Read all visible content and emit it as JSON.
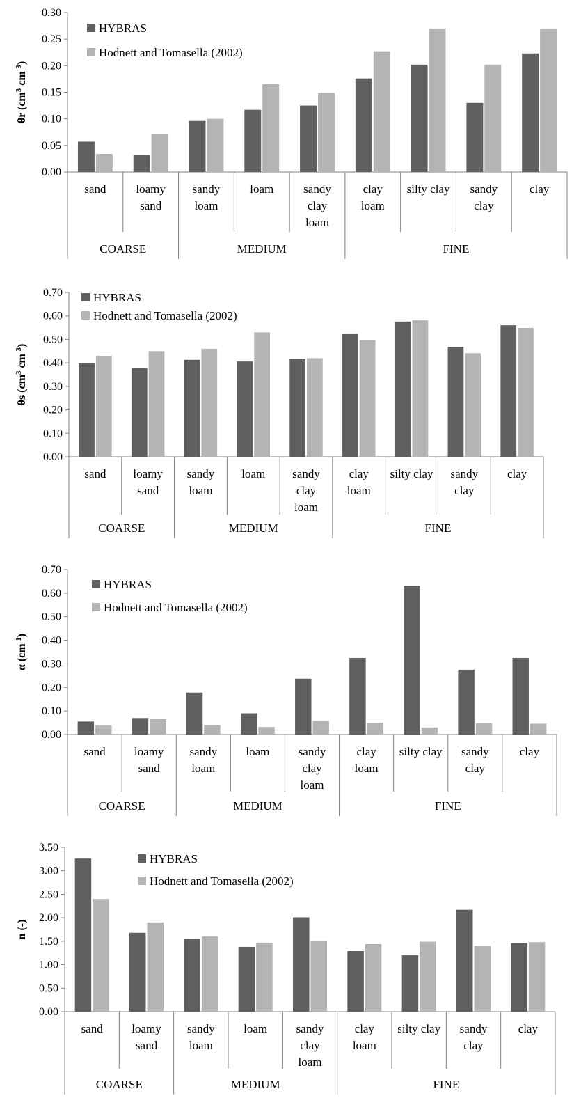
{
  "colors": {
    "hybras": "#5f5f5f",
    "hodnett": "#b4b4b4",
    "axis": "#808080"
  },
  "chart_data": [
    {
      "type": "bar",
      "ylabel_base": "θr (cm",
      "ylabel_mid": " cm",
      "ylabel_end": ")",
      "ylabel_sup1": "3",
      "ylabel_sup2": "-3",
      "ylim": [
        0,
        0.3
      ],
      "yticks": [
        "0.00",
        "0.05",
        "0.10",
        "0.15",
        "0.20",
        "0.25",
        "0.30"
      ],
      "categories": [
        [
          "sand"
        ],
        [
          "loamy",
          "sand"
        ],
        [
          "sandy",
          "loam"
        ],
        [
          "loam"
        ],
        [
          "sandy",
          "clay",
          "loam"
        ],
        [
          "clay",
          "loam"
        ],
        [
          "silty clay"
        ],
        [
          "sandy",
          "clay"
        ],
        [
          "clay"
        ]
      ],
      "groups": [
        {
          "label": "COARSE",
          "count": 2
        },
        {
          "label": "MEDIUM",
          "count": 3
        },
        {
          "label": "FINE",
          "count": 4
        }
      ],
      "series": [
        {
          "name": "HYBRAS",
          "values": [
            0.057,
            0.032,
            0.096,
            0.117,
            0.125,
            0.176,
            0.202,
            0.13,
            0.223
          ]
        },
        {
          "name": "Hodnett and Tomasella (2002)",
          "values": [
            0.034,
            0.072,
            0.1,
            0.165,
            0.149,
            0.227,
            0.27,
            0.202,
            0.27
          ]
        }
      ],
      "legend": "top-left",
      "grid": false
    },
    {
      "type": "bar",
      "ylabel_base": "θs (cm",
      "ylabel_mid": " cm",
      "ylabel_end": ")",
      "ylabel_sup1": "3",
      "ylabel_sup2": "-3",
      "ylim": [
        0,
        0.7
      ],
      "yticks": [
        "0.00",
        "0.10",
        "0.20",
        "0.30",
        "0.40",
        "0.50",
        "0.60",
        "0.70"
      ],
      "categories": [
        [
          "sand"
        ],
        [
          "loamy",
          "sand"
        ],
        [
          "sandy",
          "loam"
        ],
        [
          "loam"
        ],
        [
          "sandy",
          "clay",
          "loam"
        ],
        [
          "clay",
          "loam"
        ],
        [
          "silty clay"
        ],
        [
          "sandy",
          "clay"
        ],
        [
          "clay"
        ]
      ],
      "groups": [
        {
          "label": "COARSE",
          "count": 2
        },
        {
          "label": "MEDIUM",
          "count": 3
        },
        {
          "label": "FINE",
          "count": 4
        }
      ],
      "series": [
        {
          "name": "HYBRAS",
          "values": [
            0.398,
            0.378,
            0.413,
            0.406,
            0.417,
            0.523,
            0.576,
            0.468,
            0.56
          ]
        },
        {
          "name": "Hodnett and Tomasella (2002)",
          "values": [
            0.43,
            0.45,
            0.46,
            0.53,
            0.42,
            0.497,
            0.581,
            0.441,
            0.549
          ]
        }
      ],
      "legend": "top-left",
      "grid": false
    },
    {
      "type": "bar",
      "ylabel_base": "α (cm",
      "ylabel_mid": "",
      "ylabel_end": ")",
      "ylabel_sup1": "-1",
      "ylabel_sup2": "",
      "ylim": [
        0,
        0.7
      ],
      "yticks": [
        "0.00",
        "0.10",
        "0.20",
        "0.30",
        "0.40",
        "0.50",
        "0.60",
        "0.70"
      ],
      "categories": [
        [
          "sand"
        ],
        [
          "loamy",
          "sand"
        ],
        [
          "sandy",
          "loam"
        ],
        [
          "loam"
        ],
        [
          "sandy",
          "clay",
          "loam"
        ],
        [
          "clay",
          "loam"
        ],
        [
          "silty clay"
        ],
        [
          "sandy",
          "clay"
        ],
        [
          "clay"
        ]
      ],
      "groups": [
        {
          "label": "COARSE",
          "count": 2
        },
        {
          "label": "MEDIUM",
          "count": 3
        },
        {
          "label": "FINE",
          "count": 4
        }
      ],
      "series": [
        {
          "name": "HYBRAS",
          "values": [
            0.055,
            0.07,
            0.178,
            0.09,
            0.237,
            0.325,
            0.632,
            0.275,
            0.325
          ]
        },
        {
          "name": "Hodnett and Tomasella (2002)",
          "values": [
            0.038,
            0.065,
            0.04,
            0.032,
            0.058,
            0.05,
            0.03,
            0.048,
            0.046
          ]
        }
      ],
      "legend": "top-left",
      "grid": false
    },
    {
      "type": "bar",
      "ylabel_base": "n (-)",
      "ylabel_mid": "",
      "ylabel_end": "",
      "ylabel_sup1": "",
      "ylabel_sup2": "",
      "ylim": [
        0,
        3.5
      ],
      "yticks": [
        "0.00",
        "0.50",
        "1.00",
        "1.50",
        "2.00",
        "2.50",
        "3.00",
        "3.50"
      ],
      "categories": [
        [
          "sand"
        ],
        [
          "loamy",
          "sand"
        ],
        [
          "sandy",
          "loam"
        ],
        [
          "loam"
        ],
        [
          "sandy",
          "clay",
          "loam"
        ],
        [
          "clay",
          "loam"
        ],
        [
          "silty clay"
        ],
        [
          "sandy",
          "clay"
        ],
        [
          "clay"
        ]
      ],
      "groups": [
        {
          "label": "COARSE",
          "count": 2
        },
        {
          "label": "MEDIUM",
          "count": 3
        },
        {
          "label": "FINE",
          "count": 4
        }
      ],
      "series": [
        {
          "name": "HYBRAS",
          "values": [
            3.26,
            1.68,
            1.55,
            1.38,
            2.01,
            1.29,
            1.2,
            2.17,
            1.46
          ]
        },
        {
          "name": "Hodnett and Tomasella (2002)",
          "values": [
            2.4,
            1.9,
            1.6,
            1.47,
            1.5,
            1.44,
            1.49,
            1.4,
            1.48
          ]
        }
      ],
      "legend": "top-left",
      "grid": false
    }
  ]
}
